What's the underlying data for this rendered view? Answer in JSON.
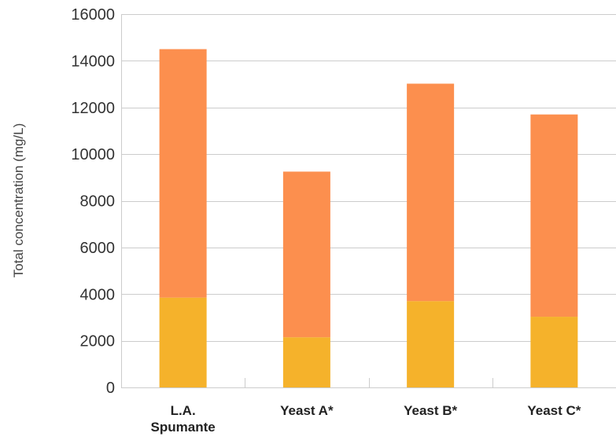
{
  "chart_data": {
    "type": "bar",
    "stacked": true,
    "title": "",
    "xlabel": "",
    "ylabel": "Total concentration (mg/L)",
    "categories": [
      [
        "L.A.",
        "Spumante"
      ],
      [
        "Yeast A*"
      ],
      [
        "Yeast B*"
      ],
      [
        "Yeast C*"
      ]
    ],
    "series": [
      {
        "color": "#f5b22b",
        "values": [
          3850,
          2150,
          3700,
          3030
        ]
      },
      {
        "color": "#fc8f4e",
        "values": [
          10650,
          7100,
          9320,
          8670
        ]
      }
    ],
    "ylim": [
      0,
      16000
    ],
    "yticks": [
      0,
      2000,
      4000,
      6000,
      8000,
      10000,
      12000,
      14000,
      16000
    ],
    "grid": "horizontal",
    "legend": "none",
    "colors": {
      "grid": "#cccccc",
      "tick_text": "#333333"
    }
  }
}
